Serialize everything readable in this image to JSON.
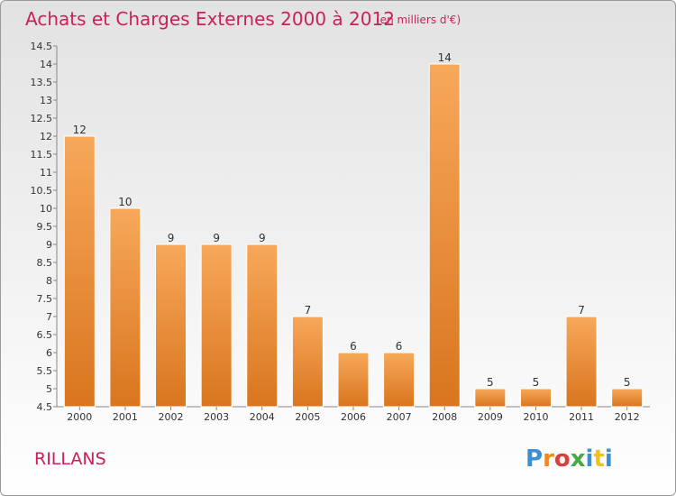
{
  "chart_data": {
    "type": "bar",
    "title": "Achats et Charges Externes 2000 à 2012",
    "subtitle": "(en milliers d'€)",
    "categories": [
      "2000",
      "2001",
      "2002",
      "2003",
      "2004",
      "2005",
      "2006",
      "2007",
      "2008",
      "2009",
      "2010",
      "2011",
      "2012"
    ],
    "values": [
      12,
      10,
      9,
      9,
      9,
      7,
      6,
      6,
      14,
      5,
      5,
      7,
      5
    ],
    "value_labels": [
      "12",
      "10",
      "9",
      "9",
      "9",
      "7",
      "6",
      "6",
      "14",
      "5",
      "5",
      "7",
      "5"
    ],
    "ylim": [
      4.5,
      14.5
    ],
    "y_ticks": [
      "4.5",
      "5",
      "5.5",
      "6",
      "6.5",
      "7",
      "7.5",
      "8",
      "8.5",
      "9",
      "9.5",
      "10",
      "10.5",
      "11",
      "11.5",
      "12",
      "12.5",
      "13",
      "13.5",
      "14",
      "14.5"
    ],
    "grid": false,
    "legend": "none",
    "bar_color_top": "#f7a85a",
    "bar_color_bottom": "#d9751e"
  },
  "commune_name": "RILLANS",
  "logo": {
    "text": "Proxiti",
    "letter_colors": [
      "#3c8fd0",
      "#f08a1c",
      "#d93f3f",
      "#49a942",
      "#3c8fd0",
      "#f0c21c",
      "#3c8fd0"
    ]
  }
}
